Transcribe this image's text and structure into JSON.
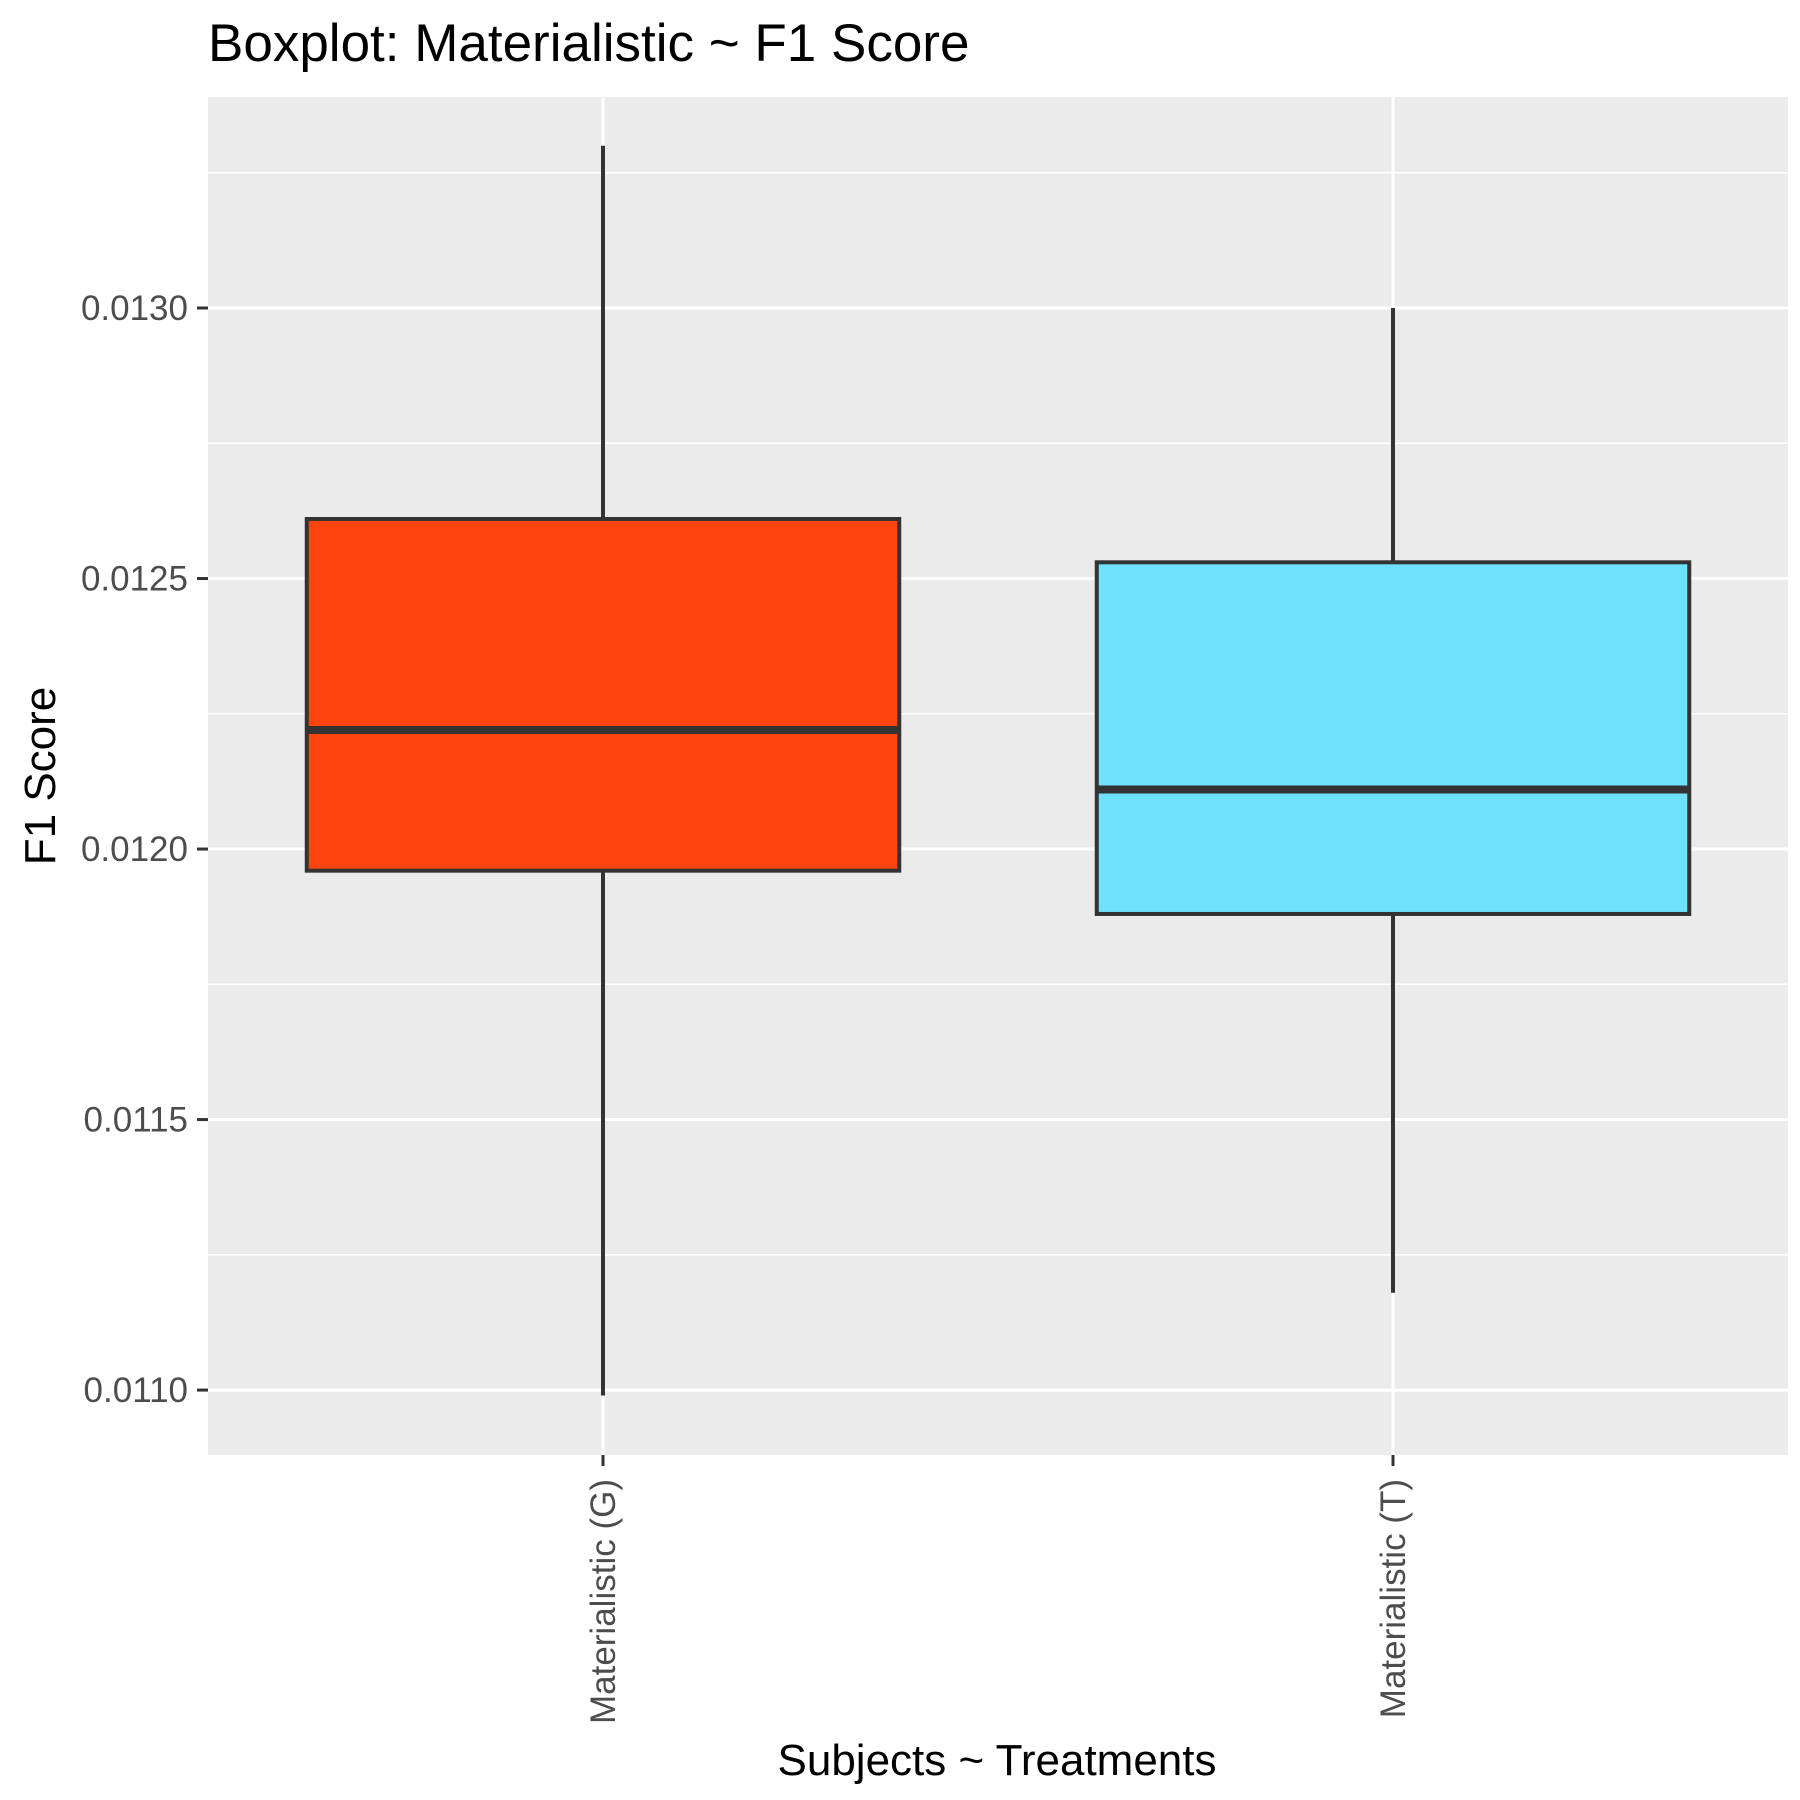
{
  "chart_data": {
    "type": "boxplot",
    "title": "Boxplot: Materialistic ~ F1 Score",
    "xlabel": "Subjects ~ Treatments",
    "ylabel": "F1 Score",
    "ylim": [
      0.01088,
      0.01339
    ],
    "y_ticks": [
      0.011,
      0.0115,
      0.012,
      0.0125,
      0.013
    ],
    "y_tick_labels": [
      "0.0110",
      "0.0115",
      "0.0120",
      "0.0125",
      "0.0130"
    ],
    "grid": true,
    "legend": "none",
    "categories": [
      "Materialistic (G)",
      "Materialistic (T)"
    ],
    "boxes": [
      {
        "category": "Materialistic (G)",
        "whisker_low": 0.01099,
        "q1": 0.01196,
        "median": 0.01222,
        "q3": 0.01261,
        "whisker_high": 0.0133,
        "color": "#FF4410"
      },
      {
        "category": "Materialistic (T)",
        "whisker_low": 0.01118,
        "q1": 0.01188,
        "median": 0.01211,
        "q3": 0.01253,
        "whisker_high": 0.013,
        "color": "#6EE1FF"
      }
    ]
  },
  "colors": {
    "panel_background": "#EBEBEB",
    "grid": "#FFFFFF",
    "outline": "#333333"
  }
}
